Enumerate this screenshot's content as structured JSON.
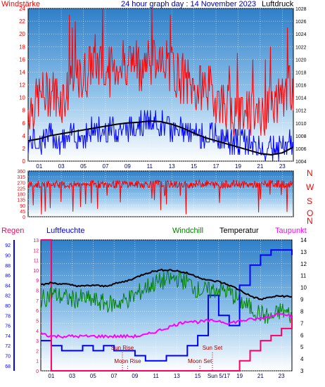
{
  "chart_data": [
    {
      "type": "line",
      "panel": "wind",
      "title": "24 hour graph day : 14 November 2023",
      "left_label": "Windstärke",
      "right_label": "Luftdruck",
      "x_ticks": [
        "01",
        "03",
        "05",
        "07",
        "09",
        "11",
        "13",
        "15",
        "17",
        "19",
        "21",
        "23"
      ],
      "left_ticks": [
        0,
        2,
        4,
        6,
        8,
        10,
        12,
        14,
        16,
        18,
        20,
        22,
        24
      ],
      "right_ticks": [
        1004,
        1006,
        1008,
        1010,
        1012,
        1014,
        1016,
        1018,
        1020,
        1022,
        1024,
        1026,
        1028
      ],
      "ylim_left": [
        0,
        24
      ],
      "ylim_right": [
        1004,
        1028
      ],
      "grid": true,
      "series": [
        {
          "name": "Windstärke",
          "color": "#ff0000",
          "x": [
            0,
            1,
            2,
            3,
            4,
            5,
            6,
            7,
            8,
            9,
            10,
            11,
            12,
            13,
            14,
            15,
            16,
            17,
            18,
            19,
            20,
            21,
            22,
            23,
            24
          ],
          "values": [
            8,
            10,
            11,
            10,
            12,
            13,
            16,
            14,
            15,
            16,
            15,
            16,
            17,
            15,
            13,
            11,
            12,
            10,
            9,
            8,
            8,
            7,
            9,
            10,
            12
          ]
        },
        {
          "name": "Windstärke avg",
          "color": "#0000ff",
          "x": [
            0,
            1,
            2,
            3,
            4,
            5,
            6,
            7,
            8,
            9,
            10,
            11,
            12,
            13,
            14,
            15,
            16,
            17,
            18,
            19,
            20,
            21,
            22,
            23,
            24
          ],
          "values": [
            3,
            3,
            4,
            3,
            4,
            4,
            5,
            5,
            5,
            5,
            6,
            6,
            6,
            5,
            5,
            4,
            4,
            4,
            3,
            3,
            3,
            2,
            2,
            2,
            3
          ]
        },
        {
          "name": "Luftdruck",
          "color": "#000000",
          "x": [
            0,
            1,
            2,
            3,
            4,
            5,
            6,
            7,
            8,
            9,
            10,
            11,
            12,
            13,
            14,
            15,
            16,
            17,
            18,
            19,
            20,
            21,
            22,
            23,
            24
          ],
          "values": [
            1007.2,
            1007.5,
            1008,
            1008.3,
            1008.6,
            1008.9,
            1009.2,
            1009.5,
            1009.8,
            1010,
            1010.1,
            1010.3,
            1010.2,
            1009.8,
            1009.2,
            1008.4,
            1007.7,
            1007.2,
            1006.7,
            1006.2,
            1005.7,
            1005.2,
            1005,
            1005.3,
            1006.2
          ]
        }
      ]
    },
    {
      "type": "line",
      "panel": "direction",
      "right_label_letters": [
        "N",
        "W",
        "S",
        "O",
        "N"
      ],
      "x_ticks": [
        "01",
        "03",
        "05",
        "07",
        "09",
        "11",
        "13",
        "15",
        "17",
        "19",
        "21",
        "23"
      ],
      "left_ticks": [
        0,
        45,
        90,
        135,
        180,
        225,
        270,
        315,
        360
      ],
      "ylim": [
        0,
        360
      ],
      "grid": true,
      "series": [
        {
          "name": "Windrichtung",
          "color": "#ff0000",
          "x": [
            0,
            1,
            2,
            3,
            4,
            5,
            6,
            7,
            8,
            9,
            10,
            11,
            12,
            13,
            14,
            15,
            16,
            17,
            18,
            19,
            20,
            21,
            22,
            23,
            24
          ],
          "values": [
            250,
            255,
            260,
            250,
            248,
            262,
            258,
            250,
            255,
            260,
            252,
            258,
            262,
            255,
            250,
            258,
            262,
            250,
            255,
            258,
            250,
            255,
            260,
            258,
            255
          ]
        }
      ]
    },
    {
      "type": "line",
      "panel": "temp_humidity",
      "top_labels": [
        "Regen",
        "Luftfeuchte",
        "Windchill",
        "Temperatur",
        "Taupunkt"
      ],
      "x_ticks": [
        "01",
        "03",
        "05",
        "07",
        "09",
        "11",
        "13",
        "15",
        "Sun 5/17",
        "19",
        "21",
        "23"
      ],
      "rain_ticks": [
        0,
        1,
        2,
        3,
        4,
        5,
        6,
        7,
        8,
        9,
        10,
        11,
        12,
        13
      ],
      "humidity_ticks": [
        68,
        70,
        72,
        74,
        76,
        78,
        80,
        82,
        84,
        86,
        88,
        90,
        92
      ],
      "temp_ticks": [
        3,
        4,
        5,
        6,
        7,
        8,
        9,
        10,
        11,
        12,
        13,
        14
      ],
      "ylim_rain": [
        0,
        13
      ],
      "ylim_humidity": [
        67,
        93
      ],
      "ylim_temp": [
        3,
        14
      ],
      "annotations": [
        "Sun Rise",
        "Moon Rise",
        "Sun Set",
        "Moon Set"
      ],
      "grid": true,
      "series": [
        {
          "name": "Temperatur",
          "color": "#000000",
          "axis": "temp",
          "x": [
            0,
            1,
            2,
            3,
            4,
            5,
            6,
            7,
            8,
            9,
            10,
            11,
            12,
            13,
            14,
            15,
            16,
            17,
            18,
            19,
            20,
            21,
            22,
            23,
            24
          ],
          "values": [
            10.2,
            10.4,
            10.3,
            10.2,
            10.1,
            10.2,
            10.1,
            10.3,
            10.5,
            10.8,
            11.2,
            11.4,
            11.5,
            11.4,
            11.2,
            10.9,
            10.6,
            10.5,
            10.2,
            9.8,
            9.3,
            9.0,
            9.2,
            9.3,
            9.2
          ]
        },
        {
          "name": "Windchill",
          "color": "#008000",
          "axis": "temp",
          "x": [
            0,
            1,
            2,
            3,
            4,
            5,
            6,
            7,
            8,
            9,
            10,
            11,
            12,
            13,
            14,
            15,
            16,
            17,
            18,
            19,
            20,
            21,
            22,
            23,
            24
          ],
          "values": [
            8.9,
            9.5,
            9.2,
            9.0,
            9.1,
            8.9,
            8.7,
            8.6,
            8.9,
            9.3,
            10.0,
            10.4,
            10.6,
            10.8,
            10.5,
            9.8,
            9.7,
            9.9,
            9.6,
            8.9,
            8.3,
            7.8,
            7.4,
            8.1,
            7.6
          ]
        },
        {
          "name": "Taupunkt",
          "color": "#ff00ff",
          "axis": "temp",
          "x": [
            0,
            1,
            2,
            3,
            4,
            5,
            6,
            7,
            8,
            9,
            10,
            11,
            12,
            13,
            14,
            15,
            16,
            17,
            18,
            19,
            20,
            21,
            22,
            23,
            24
          ],
          "values": [
            6.2,
            5.9,
            5.9,
            5.9,
            5.9,
            5.9,
            5.9,
            5.9,
            5.9,
            5.9,
            6.0,
            6.3,
            6.6,
            6.9,
            7.2,
            7.1,
            7.2,
            7.2,
            7.0,
            7.2,
            7.3,
            7.4,
            7.6,
            7.9,
            7.6
          ]
        },
        {
          "name": "Luftfeuchte",
          "color": "#0000ff",
          "axis": "humidity",
          "x": [
            0,
            1,
            2,
            3,
            4,
            5,
            6,
            7,
            8,
            9,
            10,
            11,
            12,
            13,
            14,
            15,
            16,
            17,
            18,
            19,
            20,
            21,
            22,
            23,
            24
          ],
          "values": [
            73,
            72,
            71,
            71,
            72,
            71,
            72,
            71,
            71,
            70,
            69,
            69,
            70,
            70,
            72,
            74,
            82,
            78,
            76,
            84,
            88,
            90,
            91,
            91,
            90
          ]
        },
        {
          "name": "Regen",
          "color": "#ff0066",
          "axis": "rain",
          "x": [
            0,
            0.8,
            1,
            2,
            3,
            4,
            5,
            6,
            7,
            8,
            9,
            10,
            11,
            12,
            13,
            14,
            15,
            16,
            17,
            18,
            19,
            20,
            21,
            22,
            23,
            24
          ],
          "values": [
            13,
            13,
            0,
            0,
            0,
            0,
            0,
            0,
            0,
            0,
            0,
            0,
            0,
            0,
            0,
            0,
            0,
            0,
            0,
            0,
            1,
            2,
            3,
            3.5,
            4.2,
            5.5
          ]
        }
      ]
    }
  ]
}
